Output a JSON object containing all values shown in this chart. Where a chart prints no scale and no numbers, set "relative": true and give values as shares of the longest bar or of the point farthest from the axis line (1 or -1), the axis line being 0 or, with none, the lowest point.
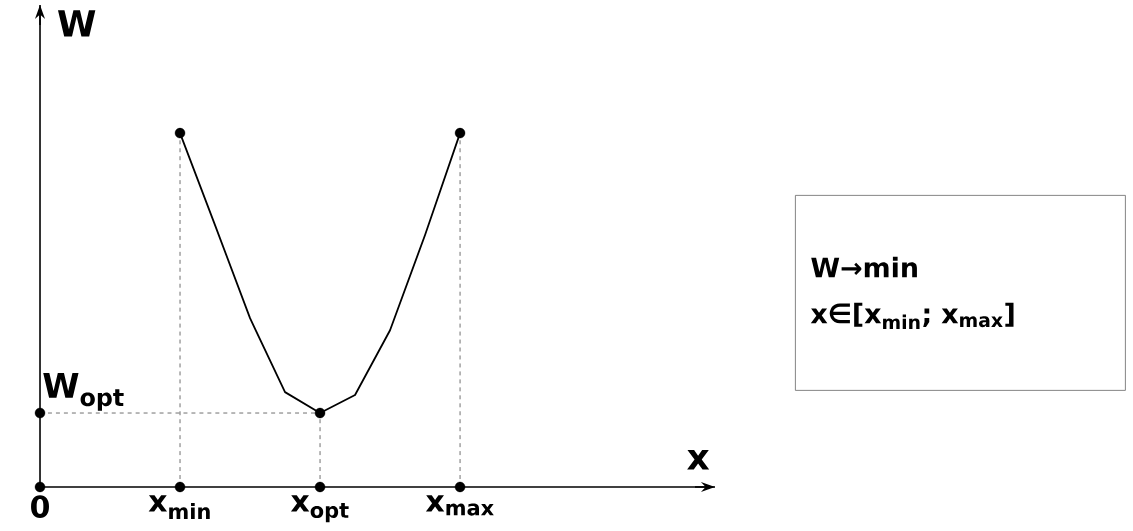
{
  "chart_data": {
    "type": "line",
    "relative": true,
    "ylabel": "W",
    "categories": [
      "0",
      null,
      null,
      null,
      "x$_{min}$",
      null,
      null,
      null,
      "x$_{opt}$",
      null,
      null,
      null,
      "x$_{max}$"
    ],
    "series": [
      {
        "color": "#000000",
        "marker": "none",
        "values": [
          null,
          null,
          null,
          null,
          1,
          0.74,
          0.477,
          0.268,
          0.209,
          0.26,
          0.443,
          0.712,
          1
        ]
      },
      {
        "type": "lollipop",
        "color": "#000000",
        "marker": "circle",
        "line_style": "dashed",
        "values": [
          null,
          null,
          null,
          null,
          1,
          null,
          null,
          null,
          0.209,
          null,
          null,
          null,
          1
        ]
      },
      {
        "type": "scatter",
        "color": "#000000",
        "marker": "circle",
        "values": [
          0,
          null,
          null,
          null,
          0,
          null,
          null,
          null,
          0,
          null,
          null,
          null,
          0
        ]
      },
      {
        "type": "scatter",
        "color": "#000000",
        "marker": "circle",
        "values": [
          0.209,
          null,
          null,
          null,
          null,
          null,
          null,
          null,
          null,
          null,
          null,
          null,
          null
        ]
      }
    ],
    "ref_lines": [
      {
        "axis": "y",
        "value": 0.209,
        "label": "W$_{opt}$",
        "line_style": "dashed"
      }
    ],
    "annotations": [
      "x",
      "W→min",
      "x∈[x$_{min}$; x$_{max}$]"
    ]
  }
}
